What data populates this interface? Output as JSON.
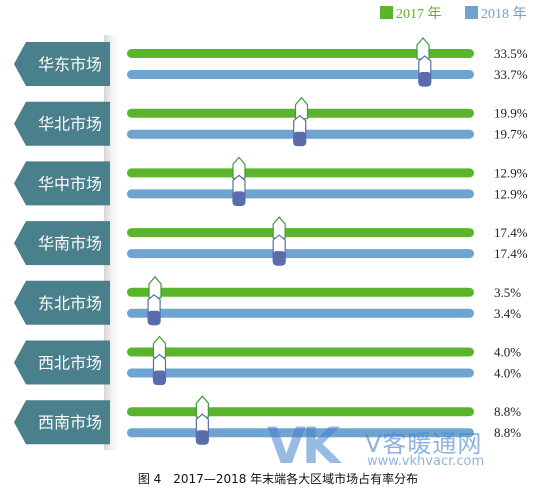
{
  "chart_data": {
    "type": "bar",
    "orientation": "horizontal",
    "caption": "图 4　2017—2018 年末端各大区域市场占有率分布",
    "legend_position": "top-right",
    "categories": [
      "华东市场",
      "华北市场",
      "华中市场",
      "华南市场",
      "东北市场",
      "西北市场",
      "西南市场"
    ],
    "series": [
      {
        "name": "2017 年",
        "color": "#5ab52c",
        "values": [
          33.5,
          19.9,
          12.9,
          17.4,
          3.5,
          4.0,
          8.8
        ],
        "labels": [
          "33.5%",
          "19.9%",
          "12.9%",
          "17.4%",
          "3.5%",
          "4.0%",
          "8.8%"
        ]
      },
      {
        "name": "2018 年",
        "color": "#6fa3d0",
        "values": [
          33.7,
          19.7,
          12.9,
          17.4,
          3.4,
          4.0,
          8.8
        ],
        "labels": [
          "33.7%",
          "19.7%",
          "12.9%",
          "17.4%",
          "3.4%",
          "4.0%",
          "8.8%"
        ]
      }
    ],
    "xlim": [
      0,
      40
    ]
  },
  "watermark": {
    "logo": "VK",
    "name": "V客暖通网",
    "url": "www.vkhvacr.com"
  },
  "colors": {
    "label_tag": "#4a7f8c",
    "marker_2017_border": "#3e9a3a",
    "marker_2018_fill": "#5a6cab"
  }
}
